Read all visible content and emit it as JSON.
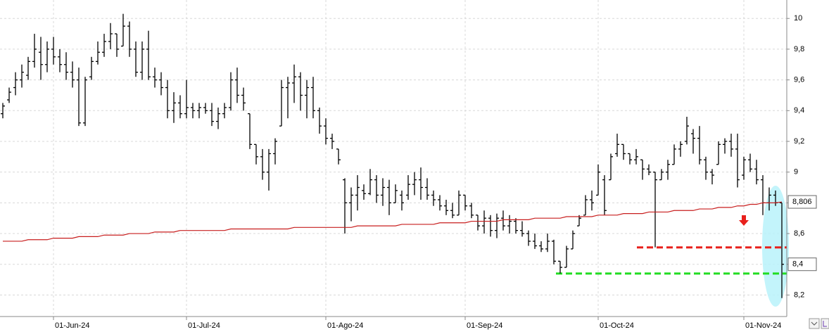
{
  "chart_data": {
    "type": "ohlc",
    "color": "#000000",
    "grid": true,
    "categories": [
      null,
      null,
      null,
      null,
      null,
      null,
      null,
      null,
      "01-Jun-24",
      null,
      null,
      null,
      null,
      null,
      null,
      null,
      null,
      null,
      null,
      null,
      null,
      null,
      null,
      null,
      null,
      null,
      null,
      null,
      null,
      "01-Jul-24",
      null,
      null,
      null,
      null,
      null,
      null,
      null,
      null,
      null,
      null,
      null,
      null,
      null,
      null,
      null,
      null,
      null,
      null,
      null,
      null,
      null,
      "01-Ago-24",
      null,
      null,
      null,
      null,
      null,
      null,
      null,
      null,
      null,
      null,
      null,
      null,
      null,
      null,
      null,
      null,
      null,
      null,
      null,
      null,
      null,
      "01-Sep-24",
      null,
      null,
      null,
      null,
      null,
      null,
      null,
      null,
      null,
      null,
      null,
      null,
      null,
      null,
      null,
      null,
      null,
      null,
      null,
      null,
      "01-Oct-24",
      null,
      null,
      null,
      null,
      null,
      null,
      null,
      null,
      null,
      null,
      null,
      null,
      null,
      null,
      null,
      null,
      null,
      null,
      null,
      null,
      null,
      null,
      "01-Nov-24",
      null,
      null,
      null,
      null,
      null,
      null
    ],
    "open": [
      9.38,
      9.47,
      9.55,
      9.6,
      9.63,
      9.72,
      9.78,
      9.7,
      9.8,
      9.75,
      9.7,
      9.65,
      9.6,
      9.32,
      9.62,
      9.72,
      9.78,
      9.85,
      9.9,
      9.82,
      9.95,
      9.8,
      9.65,
      9.8,
      9.62,
      9.6,
      9.55,
      9.4,
      9.45,
      9.38,
      9.42,
      9.4,
      9.42,
      9.4,
      9.33,
      9.38,
      9.42,
      9.6,
      9.5,
      9.38,
      9.18,
      9.1,
      9.0,
      9.12,
      9.3,
      9.55,
      9.58,
      9.62,
      9.5,
      9.55,
      9.4,
      9.3,
      9.22,
      9.15,
      8.95,
      8.8,
      8.85,
      8.88,
      8.86,
      8.95,
      8.85,
      8.9,
      8.8,
      8.85,
      8.85,
      8.92,
      8.95,
      8.9,
      8.85,
      8.82,
      8.78,
      8.75,
      8.72,
      8.85,
      8.78,
      8.72,
      8.65,
      8.7,
      8.62,
      8.7,
      8.65,
      8.68,
      8.62,
      8.6,
      8.55,
      8.52,
      8.5,
      8.55,
      8.42,
      8.38,
      8.5,
      8.65,
      8.72,
      8.82,
      8.85,
      8.95,
      8.95,
      9.12,
      9.18,
      9.12,
      9.08,
      9.08,
      9.02,
      9.0,
      8.95,
      9.0,
      9.05,
      9.15,
      9.2,
      9.25,
      9.22,
      9.08,
      9.0,
      9.05,
      9.18,
      9.2,
      9.15,
      8.98,
      9.08,
      9.02,
      8.95,
      8.8,
      8.85,
      8.8
    ],
    "high": [
      9.45,
      9.55,
      9.65,
      9.7,
      9.75,
      9.9,
      9.88,
      9.85,
      9.88,
      9.8,
      9.78,
      9.72,
      9.68,
      9.62,
      9.75,
      9.85,
      9.9,
      9.97,
      9.9,
      10.03,
      9.98,
      9.85,
      9.85,
      9.92,
      9.68,
      9.65,
      9.6,
      9.52,
      9.5,
      9.6,
      9.45,
      9.45,
      9.45,
      9.45,
      9.42,
      9.45,
      9.65,
      9.68,
      9.55,
      9.38,
      9.18,
      9.15,
      9.15,
      9.22,
      9.6,
      9.62,
      9.7,
      9.65,
      9.6,
      9.62,
      9.42,
      9.35,
      9.25,
      9.15,
      8.96,
      8.9,
      8.98,
      8.92,
      9.02,
      8.98,
      8.96,
      8.95,
      8.92,
      8.88,
      8.98,
      9.0,
      9.03,
      8.96,
      8.88,
      8.85,
      8.82,
      8.8,
      8.88,
      8.85,
      8.8,
      8.72,
      8.75,
      8.72,
      8.73,
      8.75,
      8.72,
      8.7,
      8.68,
      8.62,
      8.6,
      8.55,
      8.6,
      8.56,
      8.42,
      8.52,
      8.62,
      8.72,
      8.85,
      8.88,
      9.05,
      8.98,
      9.12,
      9.25,
      9.18,
      9.12,
      9.15,
      9.08,
      9.05,
      9.0,
      9.02,
      9.08,
      9.18,
      9.2,
      9.36,
      9.28,
      9.3,
      9.1,
      9.02,
      9.2,
      9.22,
      9.25,
      9.25,
      9.1,
      9.12,
      9.08,
      8.98,
      8.9,
      8.88,
      8.8
    ],
    "low": [
      9.35,
      9.45,
      9.5,
      9.55,
      9.6,
      9.68,
      9.6,
      9.65,
      9.7,
      9.65,
      9.6,
      9.55,
      9.3,
      9.3,
      9.6,
      9.7,
      9.75,
      9.8,
      9.75,
      9.82,
      9.75,
      9.62,
      9.6,
      9.6,
      9.55,
      9.5,
      9.35,
      9.32,
      9.35,
      9.35,
      9.35,
      9.35,
      9.38,
      9.3,
      9.28,
      9.35,
      9.4,
      9.45,
      9.4,
      9.15,
      9.05,
      8.95,
      8.88,
      9.05,
      9.3,
      9.35,
      9.45,
      9.4,
      9.35,
      9.35,
      9.25,
      9.18,
      9.15,
      9.05,
      8.6,
      8.68,
      8.75,
      8.82,
      8.85,
      8.8,
      8.78,
      8.72,
      8.8,
      8.75,
      8.82,
      8.85,
      8.82,
      8.82,
      8.78,
      8.75,
      8.72,
      8.7,
      8.72,
      8.75,
      8.7,
      8.62,
      8.6,
      8.58,
      8.57,
      8.62,
      8.6,
      8.6,
      8.58,
      8.52,
      8.5,
      8.48,
      8.48,
      8.4,
      8.34,
      8.38,
      8.5,
      8.65,
      8.72,
      8.75,
      8.85,
      8.72,
      8.95,
      9.1,
      9.08,
      9.05,
      9.05,
      8.95,
      8.98,
      8.51,
      8.95,
      8.95,
      9.05,
      9.1,
      9.18,
      9.12,
      9.05,
      8.95,
      8.92,
      9.05,
      9.12,
      9.1,
      8.9,
      8.95,
      9.0,
      8.92,
      8.72,
      8.75,
      8.78,
      8.18
    ],
    "close": [
      9.43,
      9.52,
      9.6,
      9.65,
      9.72,
      9.8,
      9.7,
      9.8,
      9.75,
      9.7,
      9.65,
      9.6,
      9.32,
      9.6,
      9.72,
      9.78,
      9.85,
      9.9,
      9.8,
      9.95,
      9.8,
      9.65,
      9.8,
      9.62,
      9.6,
      9.55,
      9.4,
      9.45,
      9.38,
      9.42,
      9.4,
      9.42,
      9.4,
      9.33,
      9.38,
      9.42,
      9.6,
      9.5,
      9.45,
      9.18,
      9.1,
      9.0,
      9.12,
      9.2,
      9.55,
      9.58,
      9.62,
      9.5,
      9.55,
      9.4,
      9.3,
      9.22,
      9.2,
      9.08,
      8.8,
      8.85,
      8.9,
      8.86,
      8.95,
      8.85,
      8.9,
      8.8,
      8.88,
      8.8,
      8.92,
      8.95,
      8.9,
      8.85,
      8.82,
      8.78,
      8.75,
      8.72,
      8.85,
      8.78,
      8.72,
      8.65,
      8.7,
      8.62,
      8.7,
      8.65,
      8.68,
      8.62,
      8.6,
      8.55,
      8.52,
      8.5,
      8.55,
      8.42,
      8.38,
      8.5,
      8.6,
      8.7,
      8.82,
      8.8,
      9.0,
      8.75,
      9.1,
      9.18,
      9.12,
      9.08,
      9.1,
      9.02,
      9.0,
      8.95,
      9.0,
      9.05,
      9.15,
      9.18,
      9.3,
      9.22,
      9.08,
      9.0,
      8.98,
      9.18,
      9.2,
      9.15,
      8.95,
      9.08,
      9.02,
      8.95,
      8.8,
      8.85,
      8.8,
      8.4
    ],
    "close_label": "8,4",
    "moving_average": {
      "color": "#c81e1e",
      "last_label": "8,806",
      "values": [
        8.55,
        8.55,
        8.55,
        8.55,
        8.56,
        8.56,
        8.56,
        8.56,
        8.57,
        8.57,
        8.57,
        8.57,
        8.58,
        8.58,
        8.58,
        8.58,
        8.59,
        8.59,
        8.59,
        8.59,
        8.6,
        8.6,
        8.6,
        8.6,
        8.61,
        8.61,
        8.61,
        8.61,
        8.62,
        8.62,
        8.62,
        8.62,
        8.62,
        8.62,
        8.62,
        8.62,
        8.63,
        8.63,
        8.63,
        8.63,
        8.63,
        8.63,
        8.63,
        8.63,
        8.63,
        8.63,
        8.64,
        8.64,
        8.64,
        8.64,
        8.64,
        8.64,
        8.64,
        8.64,
        8.64,
        8.64,
        8.65,
        8.65,
        8.65,
        8.65,
        8.65,
        8.65,
        8.65,
        8.66,
        8.66,
        8.66,
        8.66,
        8.66,
        8.66,
        8.67,
        8.67,
        8.67,
        8.67,
        8.67,
        8.68,
        8.68,
        8.68,
        8.68,
        8.68,
        8.69,
        8.69,
        8.69,
        8.69,
        8.69,
        8.7,
        8.7,
        8.7,
        8.7,
        8.7,
        8.71,
        8.71,
        8.71,
        8.71,
        8.71,
        8.72,
        8.72,
        8.72,
        8.72,
        8.73,
        8.73,
        8.73,
        8.73,
        8.74,
        8.74,
        8.74,
        8.74,
        8.75,
        8.75,
        8.75,
        8.75,
        8.76,
        8.76,
        8.76,
        8.77,
        8.77,
        8.77,
        8.78,
        8.78,
        8.79,
        8.79,
        8.8,
        8.8,
        8.8,
        8.806
      ]
    },
    "levels": [
      {
        "value": 8.51,
        "color": "#e8201c"
      },
      {
        "value": 8.34,
        "color": "#22dd22"
      }
    ],
    "ylim": [
      8.06,
      10.12
    ],
    "yticks": [
      {
        "value": 8.2,
        "label": "8,2"
      },
      {
        "value": 8.4,
        "label": "8,4"
      },
      {
        "value": 8.6,
        "label": "8,6"
      },
      {
        "value": 8.8,
        "label": "8,8"
      },
      9,
      {
        "value": 9.2,
        "label": "9,2"
      },
      {
        "value": 9.4,
        "label": "9,4"
      },
      {
        "value": 9.6,
        "label": "9,6"
      },
      {
        "value": 9.8,
        "label": "9,8"
      },
      10
    ]
  }
}
